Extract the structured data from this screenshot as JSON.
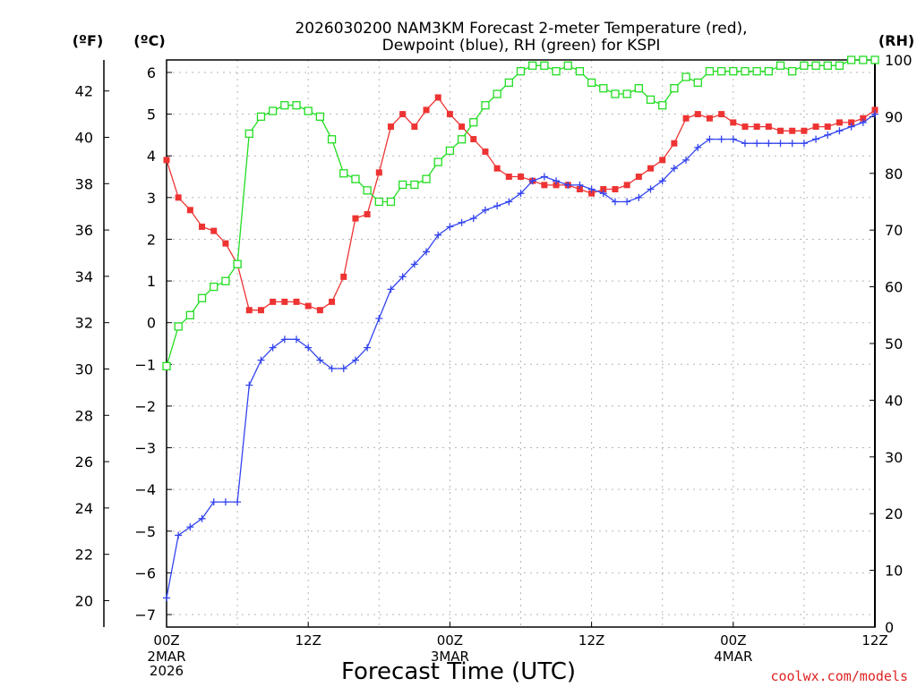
{
  "chart_data": {
    "type": "line",
    "title_line1": "2026030200 NAM3KM Forecast 2-meter Temperature (red),",
    "title_line2": "Dewpoint (blue), RH (green) for KSPI",
    "xlabel": "Forecast Time (UTC)",
    "credit": "coolwx.com/models",
    "units": {
      "fahrenheit": "(ºF)",
      "celsius": "(ºC)",
      "rh": "(RH)"
    },
    "x_range_hours": [
      0,
      60
    ],
    "celsius_range": [
      -7.3,
      6.3
    ],
    "rh_range": [
      0,
      100
    ],
    "fahrenheit_ticks": [
      "20",
      "22",
      "24",
      "26",
      "28",
      "30",
      "32",
      "34",
      "36",
      "38",
      "40",
      "42"
    ],
    "celsius_ticks": [
      "-7",
      "-6",
      "-5",
      "-4",
      "-3",
      "-2",
      "-1",
      "0",
      "1",
      "2",
      "3",
      "4",
      "5",
      "6"
    ],
    "rh_ticks": [
      "0",
      "10",
      "20",
      "30",
      "40",
      "50",
      "60",
      "70",
      "80",
      "90",
      "100"
    ],
    "x_ticks": [
      {
        "hour": 0,
        "label": "00Z",
        "date": "2MAR",
        "year": "2026"
      },
      {
        "hour": 12,
        "label": "12Z",
        "date": "",
        "year": ""
      },
      {
        "hour": 24,
        "label": "00Z",
        "date": "3MAR",
        "year": ""
      },
      {
        "hour": 36,
        "label": "12Z",
        "date": "",
        "year": ""
      },
      {
        "hour": 48,
        "label": "00Z",
        "date": "4MAR",
        "year": ""
      },
      {
        "hour": 60,
        "label": "12Z",
        "date": "",
        "year": ""
      }
    ],
    "series": [
      {
        "name": "2-meter Temperature",
        "axis": "celsius",
        "color": "#ee3333",
        "marker": "filled-square",
        "values": [
          3.9,
          3.0,
          2.7,
          2.3,
          2.2,
          1.9,
          1.4,
          0.3,
          0.3,
          0.5,
          0.5,
          0.5,
          0.4,
          0.3,
          0.5,
          1.1,
          2.5,
          2.6,
          3.6,
          4.7,
          5.0,
          4.7,
          5.1,
          5.4,
          5.0,
          4.7,
          4.4,
          4.1,
          3.7,
          3.5,
          3.5,
          3.4,
          3.3,
          3.3,
          3.3,
          3.2,
          3.1,
          3.2,
          3.2,
          3.3,
          3.5,
          3.7,
          3.9,
          4.3,
          4.9,
          5.0,
          4.9,
          5.0,
          4.8,
          4.7,
          4.7,
          4.7,
          4.6,
          4.6,
          4.6,
          4.7,
          4.7,
          4.8,
          4.8,
          4.9,
          5.1
        ]
      },
      {
        "name": "Dewpoint",
        "axis": "celsius",
        "color": "#3344ee",
        "marker": "plus",
        "values": [
          -6.6,
          -5.1,
          -4.9,
          -4.7,
          -4.3,
          -4.3,
          -4.3,
          -1.5,
          -0.9,
          -0.6,
          -0.4,
          -0.4,
          -0.6,
          -0.9,
          -1.1,
          -1.1,
          -0.9,
          -0.6,
          0.1,
          0.8,
          1.1,
          1.4,
          1.7,
          2.1,
          2.3,
          2.4,
          2.5,
          2.7,
          2.8,
          2.9,
          3.1,
          3.4,
          3.5,
          3.4,
          3.3,
          3.3,
          3.2,
          3.1,
          2.9,
          2.9,
          3.0,
          3.2,
          3.4,
          3.7,
          3.9,
          4.2,
          4.4,
          4.4,
          4.4,
          4.3,
          4.3,
          4.3,
          4.3,
          4.3,
          4.3,
          4.4,
          4.5,
          4.6,
          4.7,
          4.8,
          5.0
        ]
      },
      {
        "name": "RH",
        "axis": "rh",
        "color": "#22dd22",
        "marker": "open-square",
        "values": [
          46,
          53,
          55,
          58,
          60,
          61,
          64,
          87,
          90,
          91,
          92,
          92,
          91,
          90,
          86,
          80,
          79,
          77,
          75,
          75,
          78,
          78,
          79,
          82,
          84,
          86,
          89,
          92,
          94,
          96,
          98,
          99,
          99,
          98,
          99,
          98,
          96,
          95,
          94,
          94,
          95,
          93,
          92,
          95,
          97,
          96,
          98,
          98,
          98,
          98,
          98,
          98,
          99,
          98,
          99,
          99,
          99,
          99,
          100,
          100,
          100
        ]
      }
    ]
  }
}
